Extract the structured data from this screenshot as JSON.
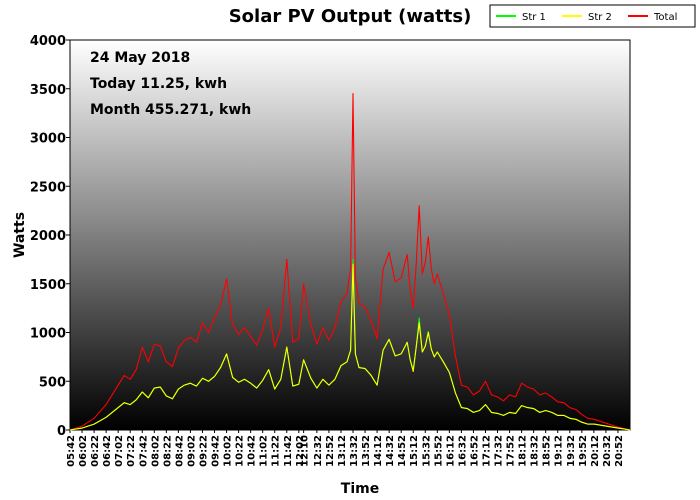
{
  "chart_data": {
    "type": "line",
    "title": "Solar PV Output (watts)",
    "xlabel": "Time",
    "ylabel": "Watts",
    "ylim": [
      0,
      4000
    ],
    "y_ticks": [
      "0",
      "500",
      "1000",
      "1500",
      "2000",
      "2500",
      "3000",
      "3500",
      "4000"
    ],
    "x_ticks": [
      "05:42",
      "06:02",
      "06:22",
      "06:42",
      "07:02",
      "07:22",
      "07:42",
      "08:02",
      "08:22",
      "08:42",
      "09:02",
      "09:22",
      "09:42",
      "10:02",
      "10:22",
      "10:42",
      "11:02",
      "11:22",
      "11:42",
      "12:02",
      "12:10",
      "12:32",
      "12:52",
      "13:12",
      "13:32",
      "13:52",
      "14:12",
      "14:32",
      "14:52",
      "15:12",
      "15:32",
      "15:52",
      "16:12",
      "16:32",
      "16:52",
      "17:12",
      "17:32",
      "17:52",
      "18:12",
      "18:32",
      "18:52",
      "19:12",
      "19:32",
      "19:52",
      "20:12",
      "20:32",
      "20:52"
    ],
    "annotations": [
      "24 May 2018",
      "Today 11.25, kwh",
      "Month 455.271, kwh"
    ],
    "legend_position": "top-right",
    "grid": false,
    "background": "vertical gradient, white at top to black at bottom",
    "x": [
      "05:42",
      "06:02",
      "06:22",
      "06:42",
      "07:02",
      "07:12",
      "07:22",
      "07:32",
      "07:42",
      "07:52",
      "08:02",
      "08:12",
      "08:22",
      "08:32",
      "08:42",
      "08:52",
      "09:02",
      "09:12",
      "09:22",
      "09:32",
      "09:42",
      "09:52",
      "10:02",
      "10:12",
      "10:22",
      "10:32",
      "10:42",
      "10:52",
      "11:02",
      "11:12",
      "11:22",
      "11:32",
      "11:42",
      "11:52",
      "12:02",
      "12:10",
      "12:22",
      "12:32",
      "12:42",
      "12:52",
      "13:02",
      "13:12",
      "13:22",
      "13:28",
      "13:32",
      "13:36",
      "13:42",
      "13:52",
      "14:02",
      "14:12",
      "14:22",
      "14:32",
      "14:42",
      "14:52",
      "15:02",
      "15:07",
      "15:12",
      "15:17",
      "15:22",
      "15:27",
      "15:32",
      "15:37",
      "15:42",
      "15:47",
      "15:52",
      "16:02",
      "16:12",
      "16:22",
      "16:32",
      "16:42",
      "16:52",
      "17:02",
      "17:12",
      "17:22",
      "17:32",
      "17:42",
      "17:52",
      "18:02",
      "18:12",
      "18:22",
      "18:32",
      "18:42",
      "18:52",
      "19:02",
      "19:12",
      "19:22",
      "19:32",
      "19:42",
      "19:52",
      "20:02",
      "20:12",
      "20:22",
      "20:32",
      "20:42",
      "20:52",
      "21:02",
      "21:12"
    ],
    "series": [
      {
        "name": "Str 1",
        "color": "#00ff00",
        "values": [
          0,
          20,
          60,
          130,
          230,
          280,
          260,
          310,
          390,
          330,
          430,
          440,
          350,
          320,
          420,
          460,
          480,
          450,
          530,
          500,
          550,
          640,
          780,
          540,
          490,
          520,
          480,
          430,
          510,
          620,
          420,
          520,
          850,
          450,
          470,
          720,
          530,
          430,
          520,
          460,
          520,
          660,
          700,
          820,
          1750,
          780,
          640,
          630,
          560,
          460,
          820,
          930,
          760,
          780,
          900,
          720,
          620,
          850,
          1150,
          800,
          860,
          1010,
          830,
          750,
          800,
          700,
          590,
          380,
          230,
          220,
          180,
          200,
          260,
          180,
          170,
          150,
          180,
          170,
          250,
          230,
          220,
          180,
          200,
          180,
          150,
          150,
          120,
          110,
          80,
          60,
          60,
          50,
          40,
          30,
          20,
          10,
          0
        ]
      },
      {
        "name": "Str 2",
        "color": "#ffff00",
        "values": [
          0,
          20,
          60,
          130,
          230,
          280,
          260,
          310,
          390,
          330,
          430,
          440,
          350,
          320,
          420,
          460,
          480,
          450,
          530,
          500,
          550,
          640,
          780,
          540,
          490,
          520,
          480,
          430,
          510,
          620,
          420,
          520,
          850,
          450,
          470,
          720,
          530,
          430,
          520,
          460,
          520,
          660,
          700,
          820,
          1700,
          780,
          640,
          630,
          560,
          460,
          820,
          930,
          760,
          780,
          900,
          720,
          600,
          850,
          1100,
          800,
          860,
          1000,
          830,
          750,
          800,
          700,
          590,
          380,
          230,
          220,
          180,
          200,
          260,
          180,
          170,
          150,
          180,
          170,
          250,
          230,
          220,
          180,
          200,
          180,
          150,
          150,
          120,
          110,
          80,
          60,
          60,
          50,
          40,
          30,
          20,
          10,
          0
        ]
      },
      {
        "name": "Total",
        "color": "#ff0000",
        "values": [
          0,
          40,
          120,
          260,
          460,
          560,
          520,
          620,
          850,
          700,
          880,
          860,
          700,
          650,
          840,
          920,
          950,
          900,
          1100,
          1000,
          1150,
          1280,
          1550,
          1080,
          980,
          1050,
          960,
          870,
          1030,
          1250,
          850,
          1050,
          1750,
          900,
          940,
          1500,
          1080,
          880,
          1050,
          920,
          1050,
          1320,
          1400,
          1650,
          3450,
          1560,
          1300,
          1260,
          1120,
          940,
          1650,
          1820,
          1520,
          1560,
          1800,
          1440,
          1250,
          1700,
          2300,
          1600,
          1720,
          1980,
          1650,
          1500,
          1600,
          1400,
          1180,
          760,
          460,
          440,
          360,
          400,
          500,
          360,
          340,
          300,
          360,
          340,
          480,
          440,
          420,
          360,
          380,
          340,
          290,
          280,
          230,
          210,
          160,
          120,
          110,
          90,
          70,
          50,
          30,
          15,
          0
        ]
      }
    ]
  }
}
